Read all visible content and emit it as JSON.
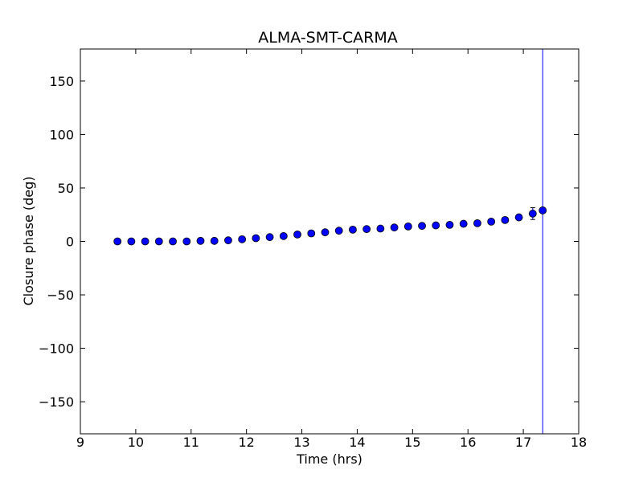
{
  "chart_data": {
    "type": "scatter",
    "title": "ALMA-SMT-CARMA",
    "xlabel": "Time (hrs)",
    "ylabel": "Closure phase (deg)",
    "xlim": [
      9,
      18
    ],
    "ylim": [
      -180,
      180
    ],
    "xticks": [
      9,
      10,
      11,
      12,
      13,
      14,
      15,
      16,
      17,
      18
    ],
    "yticks": [
      -150,
      -100,
      -50,
      0,
      50,
      100,
      150
    ],
    "grid": false,
    "marker_color": "#0000ff",
    "points": [
      {
        "x": 9.67,
        "y": 0,
        "err": 0
      },
      {
        "x": 9.92,
        "y": 0,
        "err": 0
      },
      {
        "x": 10.17,
        "y": 0,
        "err": 0
      },
      {
        "x": 10.42,
        "y": 0,
        "err": 0
      },
      {
        "x": 10.67,
        "y": 0,
        "err": 0
      },
      {
        "x": 10.92,
        "y": 0,
        "err": 0
      },
      {
        "x": 11.17,
        "y": 0.5,
        "err": 0
      },
      {
        "x": 11.42,
        "y": 0.5,
        "err": 0
      },
      {
        "x": 11.67,
        "y": 1,
        "err": 0
      },
      {
        "x": 11.92,
        "y": 2,
        "err": 0
      },
      {
        "x": 12.17,
        "y": 3,
        "err": 0
      },
      {
        "x": 12.42,
        "y": 4,
        "err": 0
      },
      {
        "x": 12.67,
        "y": 5,
        "err": 0
      },
      {
        "x": 12.92,
        "y": 6.5,
        "err": 0
      },
      {
        "x": 13.17,
        "y": 7.5,
        "err": 0
      },
      {
        "x": 13.42,
        "y": 8.5,
        "err": 0
      },
      {
        "x": 13.67,
        "y": 10,
        "err": 0
      },
      {
        "x": 13.92,
        "y": 11,
        "err": 0
      },
      {
        "x": 14.17,
        "y": 11.5,
        "err": 0
      },
      {
        "x": 14.42,
        "y": 12,
        "err": 0
      },
      {
        "x": 14.67,
        "y": 13,
        "err": 0
      },
      {
        "x": 14.92,
        "y": 14,
        "err": 0
      },
      {
        "x": 15.17,
        "y": 14.5,
        "err": 0
      },
      {
        "x": 15.42,
        "y": 15,
        "err": 0
      },
      {
        "x": 15.67,
        "y": 15.5,
        "err": 0
      },
      {
        "x": 15.92,
        "y": 16.5,
        "err": 0
      },
      {
        "x": 16.17,
        "y": 17,
        "err": 0
      },
      {
        "x": 16.42,
        "y": 18.5,
        "err": 0
      },
      {
        "x": 16.67,
        "y": 20,
        "err": 0
      },
      {
        "x": 16.92,
        "y": 22.5,
        "err": 0
      },
      {
        "x": 17.17,
        "y": 26,
        "err": 5.5
      },
      {
        "x": 17.35,
        "y": 29,
        "err": 300
      }
    ]
  }
}
